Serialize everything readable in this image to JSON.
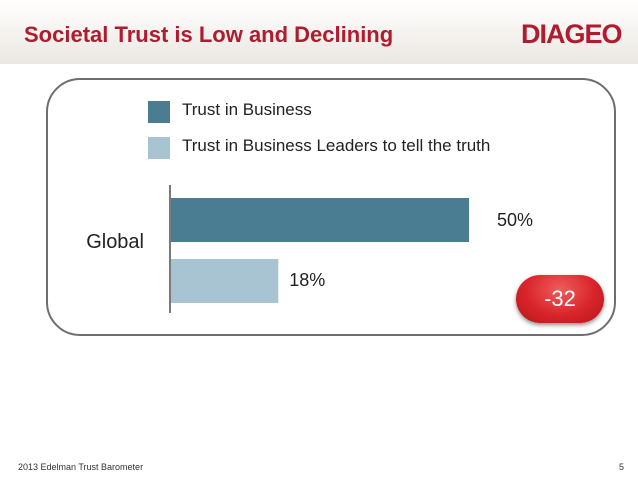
{
  "header": {
    "title": "Societal Trust is Low and Declining",
    "logo_text": "DIAGEO"
  },
  "colors": {
    "title": "#b01c2e",
    "series_1": "#4a7d92",
    "series_2": "#a8c4d2",
    "badge": "#d8252a"
  },
  "chart_data": {
    "type": "bar",
    "orientation": "horizontal",
    "categories": [
      "Global"
    ],
    "series": [
      {
        "name": "Trust in Business",
        "values": [
          50
        ],
        "labels": [
          "50%"
        ]
      },
      {
        "name": "Trust in Business Leaders to tell the truth",
        "values": [
          18
        ],
        "labels": [
          "18%"
        ]
      }
    ],
    "xlim": [
      0,
      60
    ],
    "annotation": "-32",
    "title": "",
    "xlabel": "",
    "ylabel": ""
  },
  "footer": {
    "source": "2013 Edelman Trust Barometer",
    "page_number": "5"
  }
}
